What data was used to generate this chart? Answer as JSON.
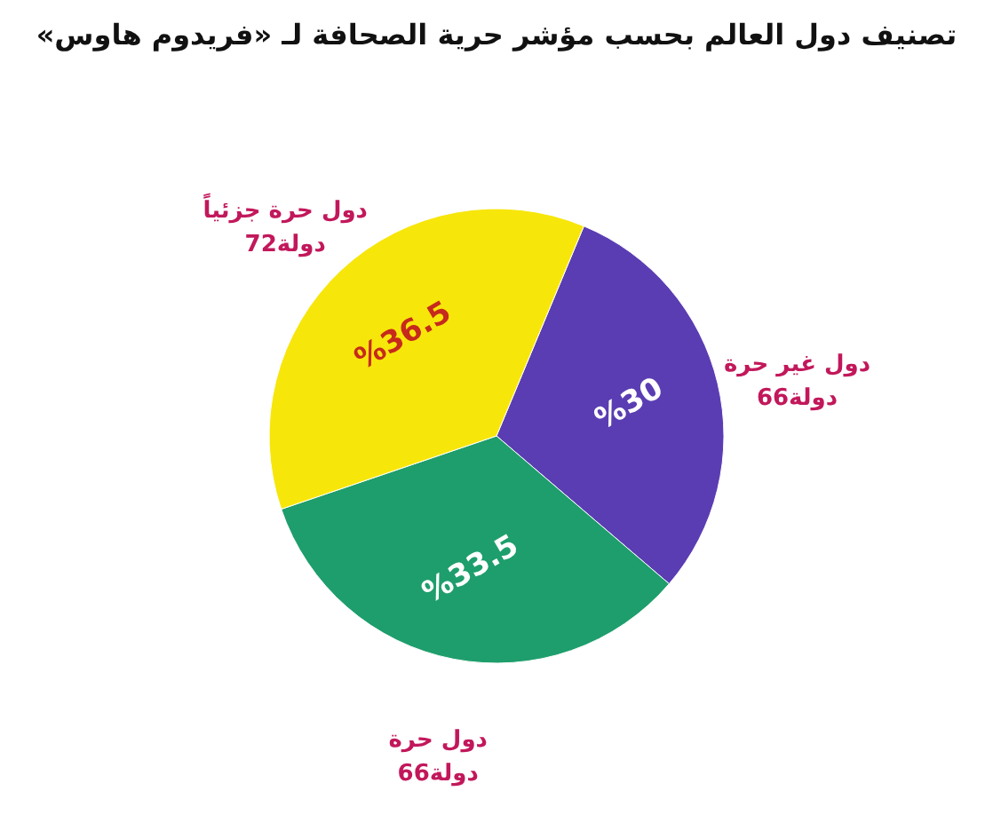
{
  "chart_data": {
    "type": "pie",
    "title": "تصنيف دول العالم بحسب مؤشر حرية الصحافة لـ «فريدوم هاوس»",
    "categories": [
      "دول غير حرة\n66دولة",
      "دول حرة\n66دولة",
      "دول حرة جزئياً\n72دولة"
    ],
    "values": [
      30,
      33.5,
      36.5
    ],
    "colors": [
      "#5a3db3",
      "#1e9e6c",
      "#f7e60a"
    ],
    "value_labels": [
      "%30",
      "%33.5",
      "%36.5"
    ],
    "legend": false
  }
}
